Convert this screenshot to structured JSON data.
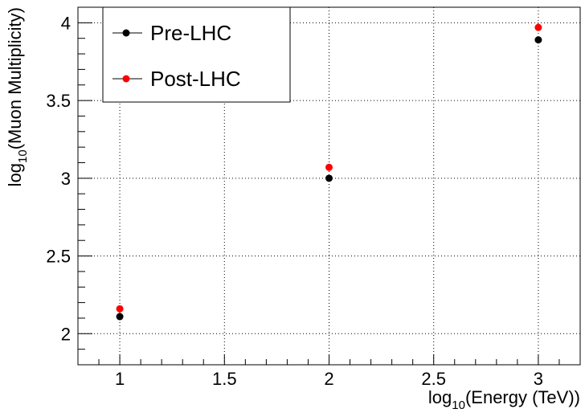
{
  "chart_data": {
    "type": "scatter",
    "xlabel": {
      "prefix": "log",
      "sub": "10",
      "suffix": "(Energy (TeV))"
    },
    "ylabel": {
      "prefix": "log",
      "sub": "10",
      "suffix": "(Muon Multiplicity)"
    },
    "xlim": [
      0.8,
      3.2
    ],
    "ylim": [
      1.8,
      4.1
    ],
    "x_ticks": [
      1,
      1.5,
      2,
      2.5,
      3
    ],
    "x_tick_labels": [
      "1",
      "1.5",
      "2",
      "2.5",
      "3"
    ],
    "y_ticks": [
      2,
      2.5,
      3,
      3.5,
      4
    ],
    "y_tick_labels": [
      "2",
      "2.5",
      "3",
      "3.5",
      "4"
    ],
    "grid": true,
    "legend_placement": "top-left",
    "series": [
      {
        "name": "Pre-LHC",
        "color": "#000000",
        "x": [
          1,
          2,
          3
        ],
        "y": [
          2.11,
          3.0,
          3.89
        ]
      },
      {
        "name": "Post-LHC",
        "color": "#ff0000",
        "x": [
          1,
          2,
          3
        ],
        "y": [
          2.16,
          3.07,
          3.97
        ]
      }
    ]
  }
}
